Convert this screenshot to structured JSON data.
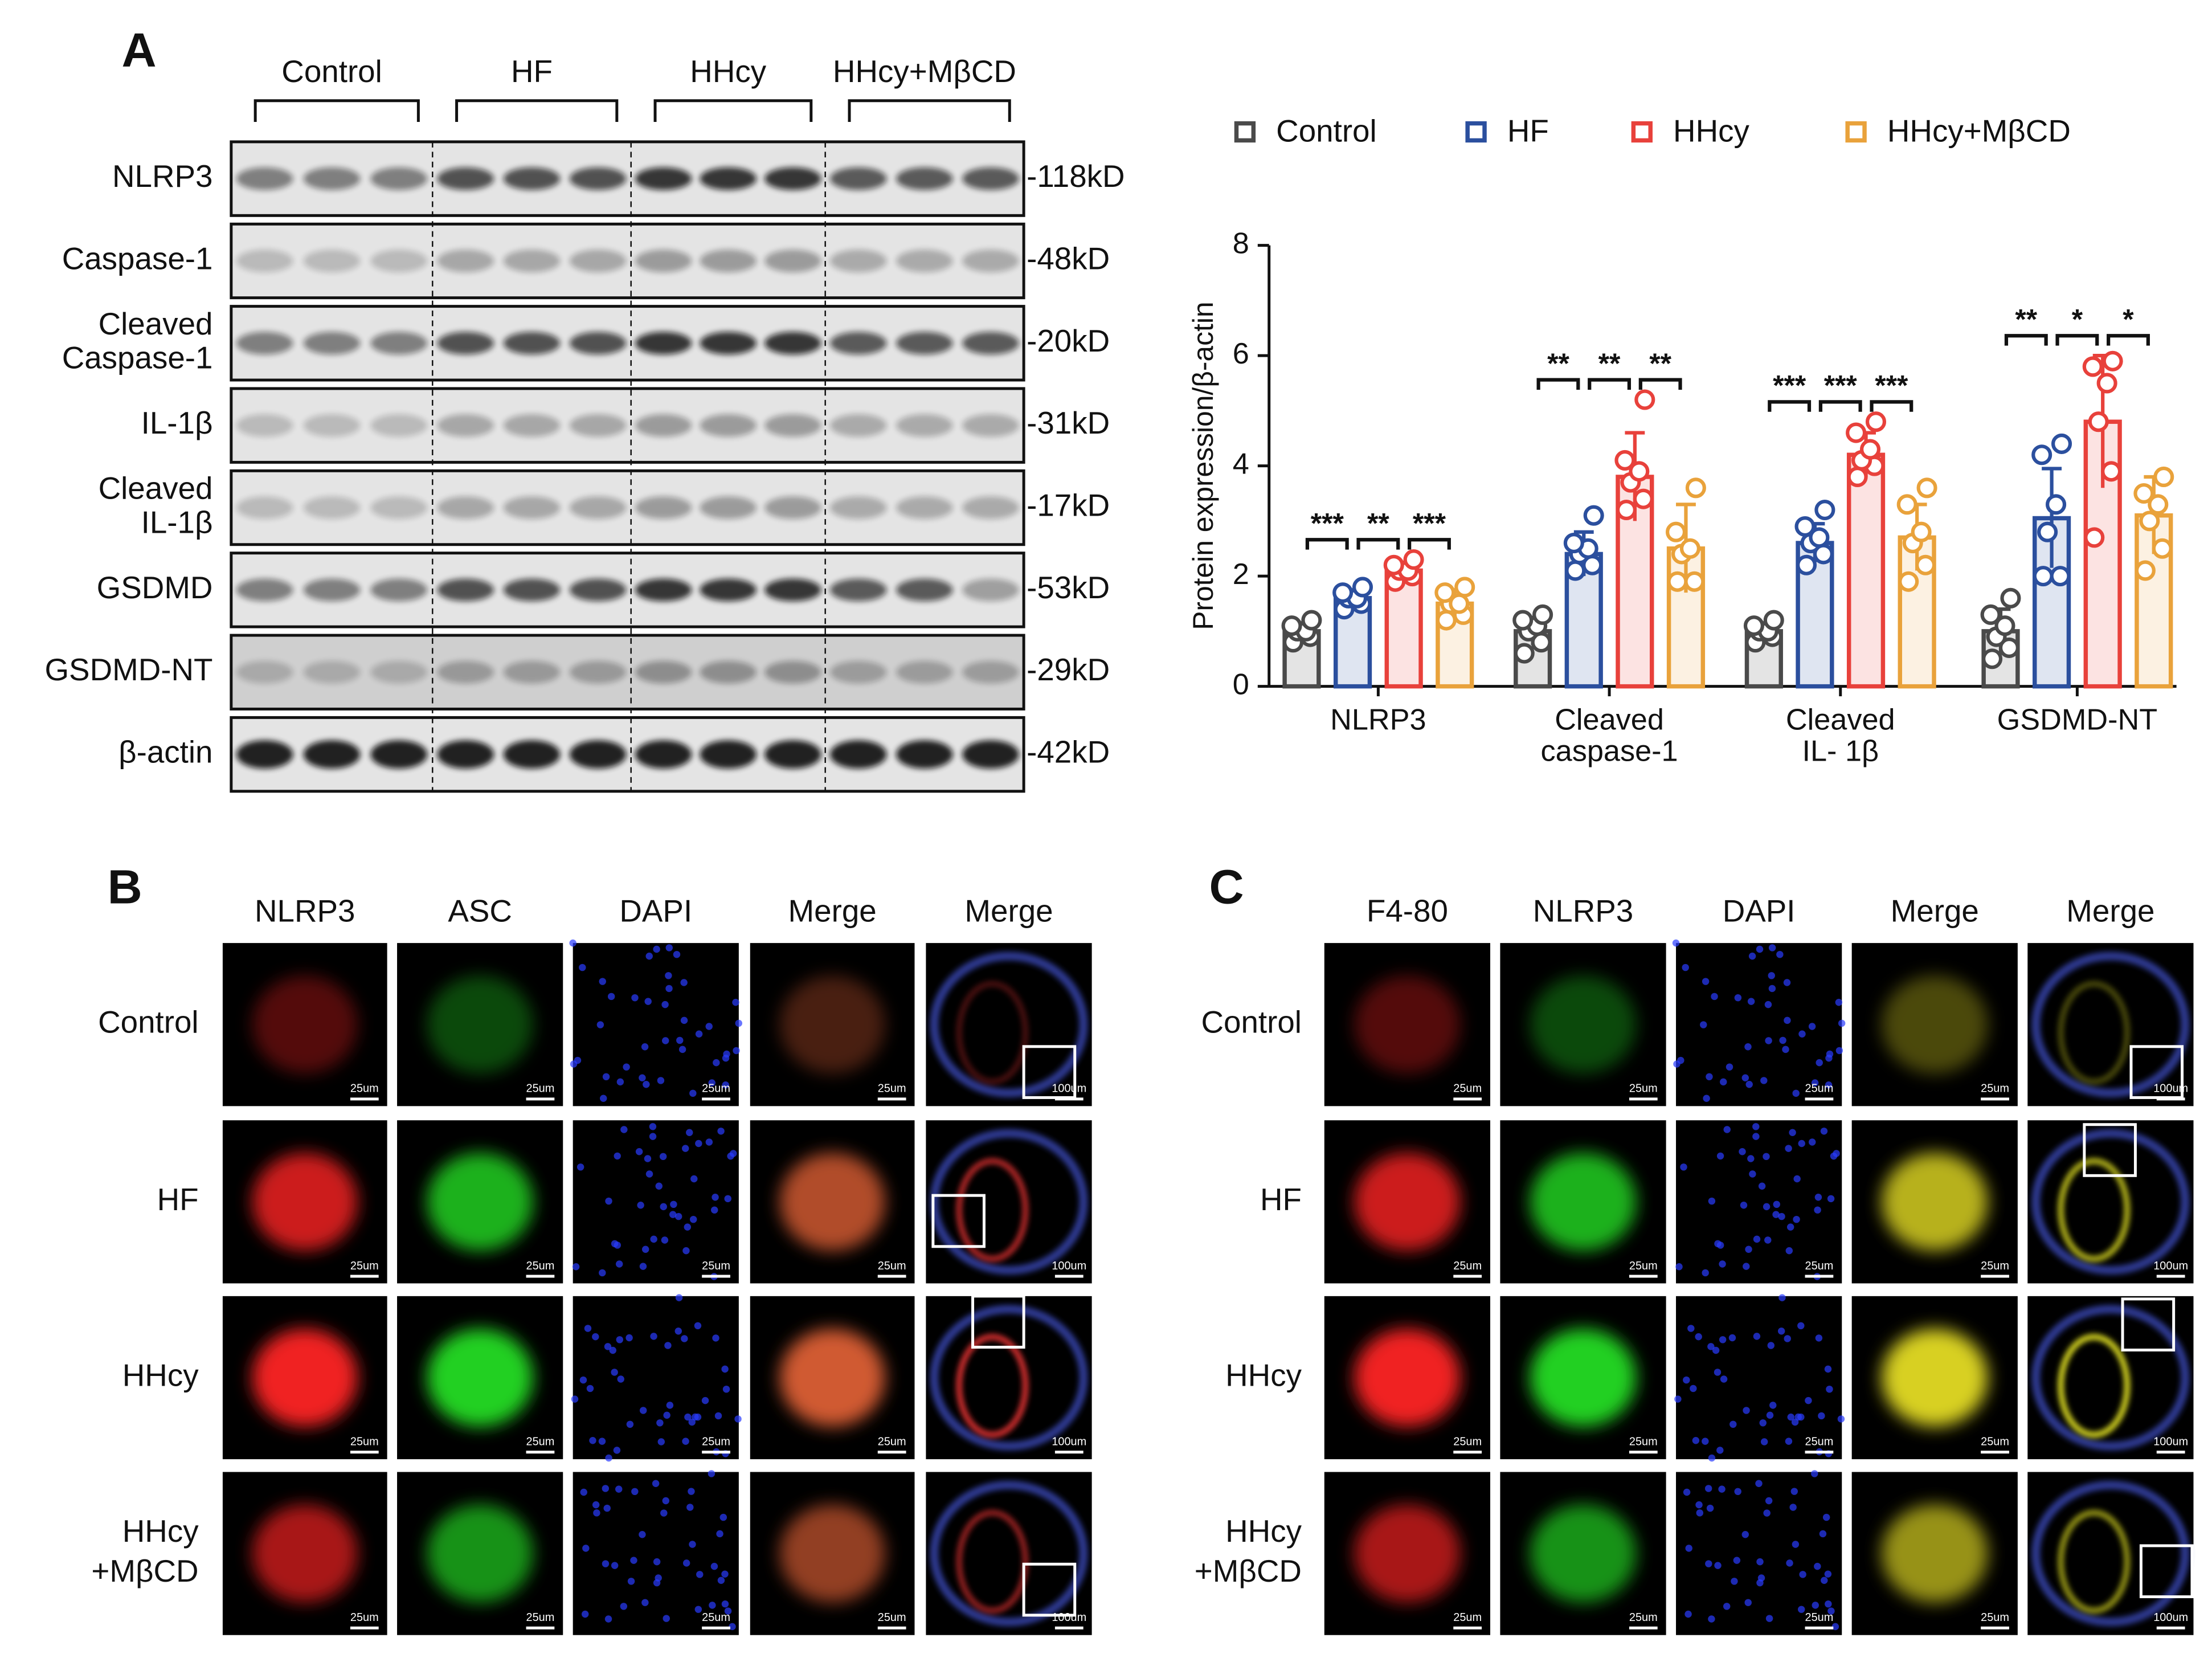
{
  "panel_labels": {
    "a": "A",
    "b": "B",
    "c": "C"
  },
  "blot": {
    "groups": [
      "Control",
      "HF",
      "HHcy",
      "HHcy+MβCD"
    ],
    "rows": [
      {
        "label": [
          "NLRP3"
        ],
        "size": "-118kD"
      },
      {
        "label": [
          "Caspase-1"
        ],
        "size": "-48kD"
      },
      {
        "label": [
          "Cleaved",
          "Caspase-1"
        ],
        "size": "-20kD"
      },
      {
        "label": [
          "IL-1β"
        ],
        "size": "-31kD"
      },
      {
        "label": [
          "Cleaved",
          "IL-1β"
        ],
        "size": "-17kD"
      },
      {
        "label": [
          "GSDMD"
        ],
        "size": "-53kD"
      },
      {
        "label": [
          "GSDMD-NT"
        ],
        "size": "-29kD"
      },
      {
        "label": [
          "β-actin"
        ],
        "size": "-42kD"
      }
    ]
  },
  "chart_data": {
    "type": "bar",
    "y_label": "Protein expression/β-actin",
    "categories": [
      [
        "NLRP3"
      ],
      [
        "Cleaved",
        "caspase-1"
      ],
      [
        "Cleaved",
        "IL- 1β"
      ],
      [
        "GSDMD-NT"
      ]
    ],
    "ylim": [
      0,
      8
    ],
    "yticks": [
      0,
      2,
      4,
      6,
      8
    ],
    "legend": "top",
    "series": [
      {
        "name": "Control",
        "color": "#4a4a4a",
        "values": [
          1.0,
          1.0,
          1.0,
          1.0
        ],
        "errors": [
          0.15,
          0.25,
          0.15,
          0.4
        ],
        "points": [
          [
            0.8,
            0.9,
            1.0,
            1.0,
            1.1,
            1.2
          ],
          [
            0.6,
            0.8,
            1.0,
            1.1,
            1.2,
            1.3
          ],
          [
            0.8,
            0.9,
            1.0,
            1.0,
            1.1,
            1.2
          ],
          [
            0.5,
            0.7,
            0.9,
            1.1,
            1.3,
            1.6
          ]
        ]
      },
      {
        "name": "HF",
        "color": "#2b4f9e",
        "values": [
          1.6,
          2.4,
          2.6,
          3.05
        ],
        "errors": [
          0.15,
          0.4,
          0.35,
          0.9
        ],
        "points": [
          [
            1.4,
            1.5,
            1.6,
            1.6,
            1.7,
            1.8
          ],
          [
            2.1,
            2.2,
            2.4,
            2.5,
            2.6,
            3.1
          ],
          [
            2.2,
            2.4,
            2.6,
            2.7,
            2.9,
            3.2
          ],
          [
            2.0,
            2.0,
            2.8,
            3.3,
            4.2,
            4.4
          ]
        ]
      },
      {
        "name": "HHcy",
        "color": "#e8413b",
        "values": [
          2.1,
          3.8,
          4.2,
          4.8
        ],
        "errors": [
          0.15,
          0.8,
          0.4,
          1.2
        ],
        "points": [
          [
            1.9,
            2.0,
            2.1,
            2.1,
            2.2,
            2.3
          ],
          [
            3.2,
            3.4,
            3.7,
            3.9,
            4.1,
            5.2
          ],
          [
            3.8,
            4.0,
            4.1,
            4.3,
            4.6,
            4.8
          ],
          [
            2.7,
            3.9,
            4.8,
            5.5,
            5.8,
            5.9
          ]
        ]
      },
      {
        "name": "HHcy+MβCD",
        "color": "#e9a23b",
        "values": [
          1.5,
          2.5,
          2.7,
          3.1
        ],
        "errors": [
          0.25,
          0.8,
          0.6,
          0.7
        ],
        "points": [
          [
            1.2,
            1.3,
            1.5,
            1.5,
            1.7,
            1.8
          ],
          [
            1.9,
            1.9,
            2.4,
            2.5,
            2.8,
            3.6
          ],
          [
            1.9,
            2.2,
            2.6,
            2.8,
            3.3,
            3.6
          ],
          [
            2.1,
            2.5,
            3.0,
            3.3,
            3.5,
            3.8
          ]
        ]
      }
    ],
    "significance": [
      [
        "***",
        "**",
        "***"
      ],
      [
        "**",
        "**",
        "**"
      ],
      [
        "***",
        "***",
        "***"
      ],
      [
        "**",
        "*",
        "*"
      ]
    ]
  },
  "panel_b": {
    "columns": [
      "NLRP3",
      "ASC",
      "DAPI",
      "Merge",
      "Merge"
    ],
    "rows": [
      [
        "Control"
      ],
      [
        "HF"
      ],
      [
        "HHcy"
      ],
      [
        "HHcy",
        "+MβCD"
      ]
    ],
    "scale_small": "25um",
    "scale_large": "100um"
  },
  "panel_c": {
    "columns": [
      "F4-80",
      "NLRP3",
      "DAPI",
      "Merge",
      "Merge"
    ],
    "rows": [
      [
        "Control"
      ],
      [
        "HF"
      ],
      [
        "HHcy"
      ],
      [
        "HHcy",
        "+MβCD"
      ]
    ],
    "scale_small": "25um",
    "scale_large": "100um"
  }
}
